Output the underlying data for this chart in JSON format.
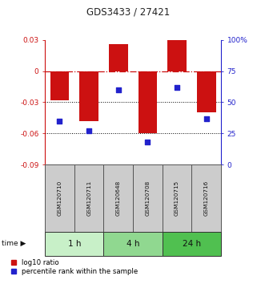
{
  "title": "GDS3433 / 27421",
  "samples": [
    "GSM120710",
    "GSM120711",
    "GSM120648",
    "GSM120708",
    "GSM120715",
    "GSM120716"
  ],
  "log10_ratio": [
    -0.028,
    -0.048,
    0.026,
    -0.06,
    0.03,
    -0.04
  ],
  "percentile_rank": [
    35,
    27,
    60,
    18,
    62,
    37
  ],
  "bar_color": "#cc1111",
  "dot_color": "#2222cc",
  "left_ylim": [
    -0.09,
    0.03
  ],
  "left_yticks": [
    0.03,
    0.0,
    -0.03,
    -0.06,
    -0.09
  ],
  "left_ytick_labels": [
    "0.03",
    "0",
    "-0.03",
    "-0.06",
    "-0.09"
  ],
  "right_ylim": [
    0,
    100
  ],
  "right_yticks": [
    100,
    75,
    50,
    25,
    0
  ],
  "right_ytick_labels": [
    "100%",
    "75",
    "50",
    "25",
    "0"
  ],
  "time_groups": [
    {
      "label": "1 h",
      "samples": [
        0,
        1
      ],
      "color": "#c8f0c8"
    },
    {
      "label": "4 h",
      "samples": [
        2,
        3
      ],
      "color": "#90d890"
    },
    {
      "label": "24 h",
      "samples": [
        4,
        5
      ],
      "color": "#50c050"
    }
  ],
  "hline_zero_color": "#cc1111",
  "dotted_lines": [
    -0.03,
    -0.06
  ],
  "legend_log10_label": "log10 ratio",
  "legend_pct_label": "percentile rank within the sample",
  "background_color": "#ffffff",
  "sample_box_color": "#cccccc",
  "sample_box_edge": "#555555",
  "bar_width": 0.65
}
